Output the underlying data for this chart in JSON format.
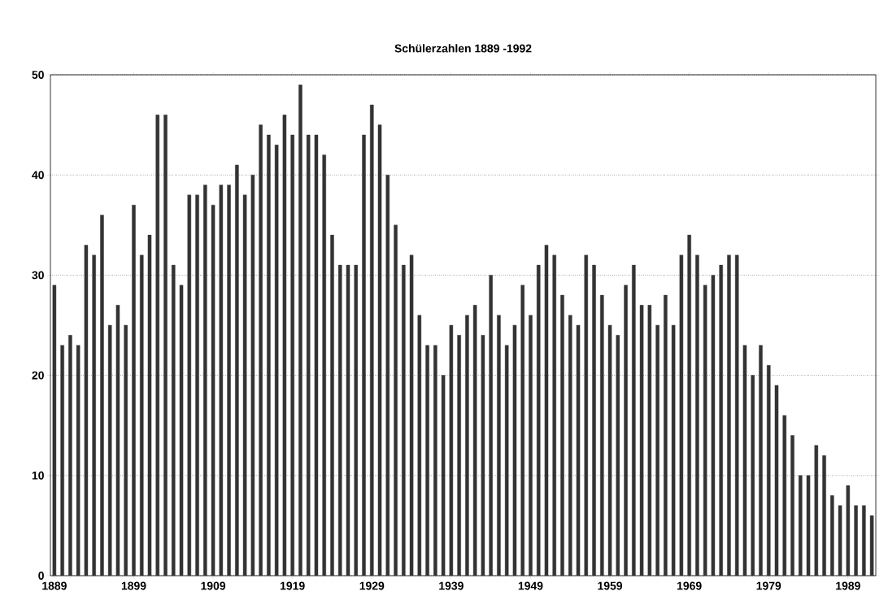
{
  "chart_data": {
    "type": "bar",
    "title": "Schülerzahlen 1889 -1992",
    "x": [
      1889,
      1890,
      1891,
      1892,
      1893,
      1894,
      1895,
      1896,
      1897,
      1898,
      1899,
      1900,
      1901,
      1902,
      1903,
      1904,
      1905,
      1906,
      1907,
      1908,
      1909,
      1910,
      1911,
      1912,
      1913,
      1914,
      1915,
      1916,
      1917,
      1918,
      1919,
      1920,
      1921,
      1922,
      1923,
      1924,
      1925,
      1926,
      1927,
      1928,
      1929,
      1930,
      1931,
      1932,
      1933,
      1934,
      1935,
      1936,
      1937,
      1938,
      1939,
      1940,
      1941,
      1942,
      1943,
      1944,
      1945,
      1946,
      1947,
      1948,
      1949,
      1950,
      1951,
      1952,
      1953,
      1954,
      1955,
      1956,
      1957,
      1958,
      1959,
      1960,
      1961,
      1962,
      1963,
      1964,
      1965,
      1966,
      1967,
      1968,
      1969,
      1970,
      1971,
      1972,
      1973,
      1974,
      1975,
      1976,
      1977,
      1978,
      1979,
      1980,
      1981,
      1982,
      1983,
      1984,
      1985,
      1986,
      1987,
      1988,
      1989,
      1990,
      1991,
      1992
    ],
    "values": [
      29,
      23,
      24,
      23,
      33,
      32,
      36,
      25,
      27,
      25,
      37,
      32,
      34,
      46,
      46,
      31,
      29,
      38,
      38,
      39,
      37,
      39,
      39,
      41,
      38,
      40,
      45,
      44,
      43,
      46,
      44,
      49,
      44,
      44,
      42,
      34,
      31,
      31,
      31,
      44,
      47,
      45,
      40,
      35,
      31,
      32,
      26,
      23,
      23,
      20,
      25,
      24,
      26,
      27,
      24,
      30,
      26,
      23,
      25,
      29,
      26,
      31,
      33,
      32,
      28,
      26,
      25,
      32,
      31,
      28,
      25,
      24,
      29,
      31,
      27,
      27,
      25,
      28,
      25,
      32,
      34,
      32,
      29,
      30,
      31,
      32,
      32,
      23,
      20,
      23,
      21,
      19,
      16,
      14,
      10,
      10,
      13,
      12,
      8,
      7,
      9,
      7,
      7,
      6
    ],
    "color": "#333333",
    "xlim": [
      1888.5,
      1992.5
    ],
    "xticks": [
      1889,
      1899,
      1909,
      1919,
      1929,
      1939,
      1949,
      1959,
      1969,
      1979,
      1989
    ],
    "ylim": [
      0,
      50
    ],
    "yticks": [
      0,
      10,
      20,
      30,
      40,
      50
    ],
    "grid": "y"
  }
}
